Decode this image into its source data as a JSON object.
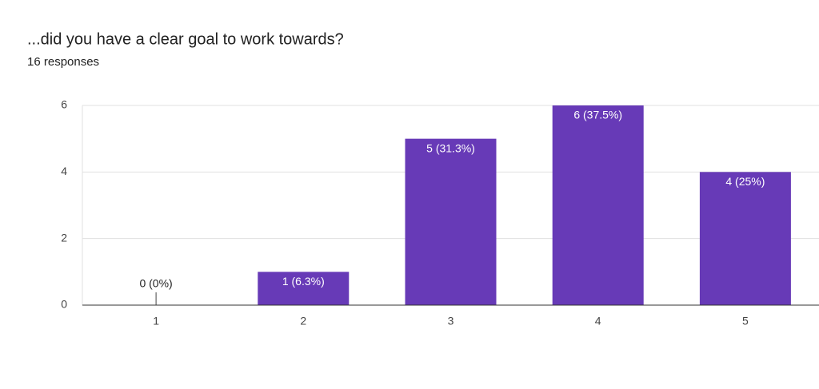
{
  "chart_data": {
    "type": "bar",
    "title": "...did you have a clear goal to work towards?",
    "subtitle": "16 responses",
    "categories": [
      "1",
      "2",
      "3",
      "4",
      "5"
    ],
    "values": [
      0,
      1,
      5,
      6,
      4
    ],
    "value_labels": [
      "0 (0%)",
      "1 (6.3%)",
      "5 (31.3%)",
      "6 (37.5%)",
      "4 (25%)"
    ],
    "color": "#673ab7",
    "ylim": [
      0,
      6
    ],
    "yticks": [
      0,
      2,
      4,
      6
    ],
    "grid": true
  }
}
